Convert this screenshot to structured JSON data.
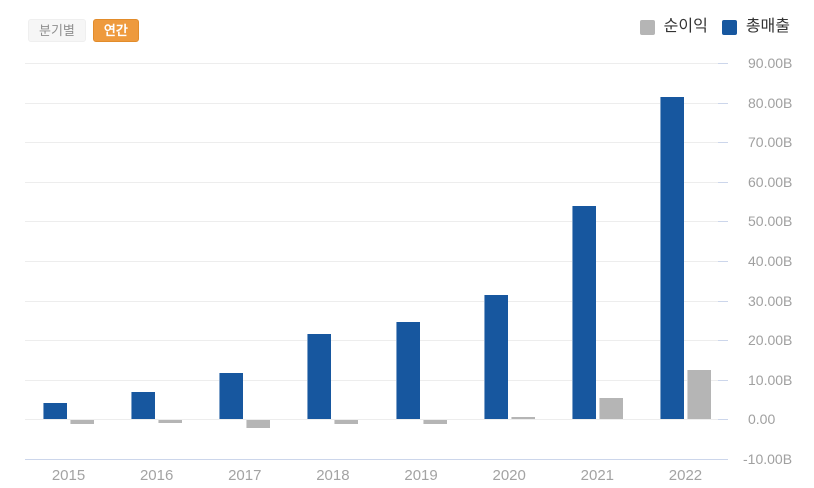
{
  "toggle": {
    "quarterly_label": "분기별",
    "annual_label": "연간",
    "active": "연간",
    "active_color": "#ee9a3d"
  },
  "legend": [
    {
      "label": "순이익",
      "color": "#b5b5b5"
    },
    {
      "label": "총매출",
      "color": "#17579f"
    }
  ],
  "chart_data": {
    "type": "bar",
    "categories": [
      "2015",
      "2016",
      "2017",
      "2018",
      "2019",
      "2020",
      "2021",
      "2022"
    ],
    "series": [
      {
        "name": "총매출",
        "color": "#17579f",
        "slot": 0,
        "values": [
          4.05,
          7.0,
          11.76,
          21.46,
          24.58,
          31.54,
          53.82,
          81.46
        ]
      },
      {
        "name": "순이익",
        "color": "#b5b5b5",
        "slot": 1,
        "values": [
          -0.89,
          -0.67,
          -1.96,
          -0.98,
          -0.86,
          0.72,
          5.52,
          12.56
        ]
      }
    ],
    "unit": "B",
    "ylim": [
      -10,
      90
    ],
    "y_ticks": [
      {
        "value": 90,
        "label": "90.00B"
      },
      {
        "value": 80,
        "label": "80.00B"
      },
      {
        "value": 70,
        "label": "70.00B"
      },
      {
        "value": 60,
        "label": "60.00B"
      },
      {
        "value": 50,
        "label": "50.00B"
      },
      {
        "value": 40,
        "label": "40.00B"
      },
      {
        "value": 30,
        "label": "30.00B"
      },
      {
        "value": 20,
        "label": "20.00B"
      },
      {
        "value": 10,
        "label": "10.00B"
      },
      {
        "value": 0,
        "label": "0.00"
      },
      {
        "value": -10,
        "label": "-10.00B"
      }
    ],
    "grid": true,
    "legend_position": "top-right",
    "colors": {
      "gridline": "#ededed",
      "axis_line": "#ccd6eb",
      "tick_label": "#a0a0a0"
    }
  }
}
